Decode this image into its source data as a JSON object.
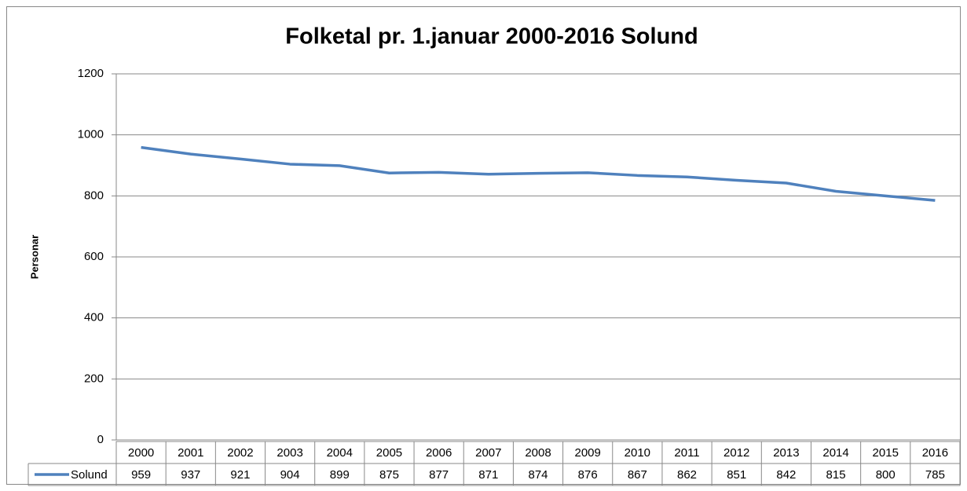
{
  "chart_data": {
    "type": "line",
    "title": "Folketal pr. 1.januar 2000-2016 Solund",
    "y_label": "Personar",
    "categories": [
      "2000",
      "2001",
      "2002",
      "2003",
      "2004",
      "2005",
      "2006",
      "2007",
      "2008",
      "2009",
      "2010",
      "2011",
      "2012",
      "2013",
      "2014",
      "2015",
      "2016"
    ],
    "series": [
      {
        "name": "Solund",
        "color": "#4f81bd",
        "values": [
          959,
          937,
          921,
          904,
          899,
          875,
          877,
          871,
          874,
          876,
          867,
          862,
          851,
          842,
          815,
          800,
          785
        ]
      }
    ],
    "ylim": [
      0,
      1200
    ],
    "yticks": [
      0,
      200,
      400,
      600,
      800,
      1000,
      1200
    ],
    "grid": true,
    "data_table": true
  }
}
